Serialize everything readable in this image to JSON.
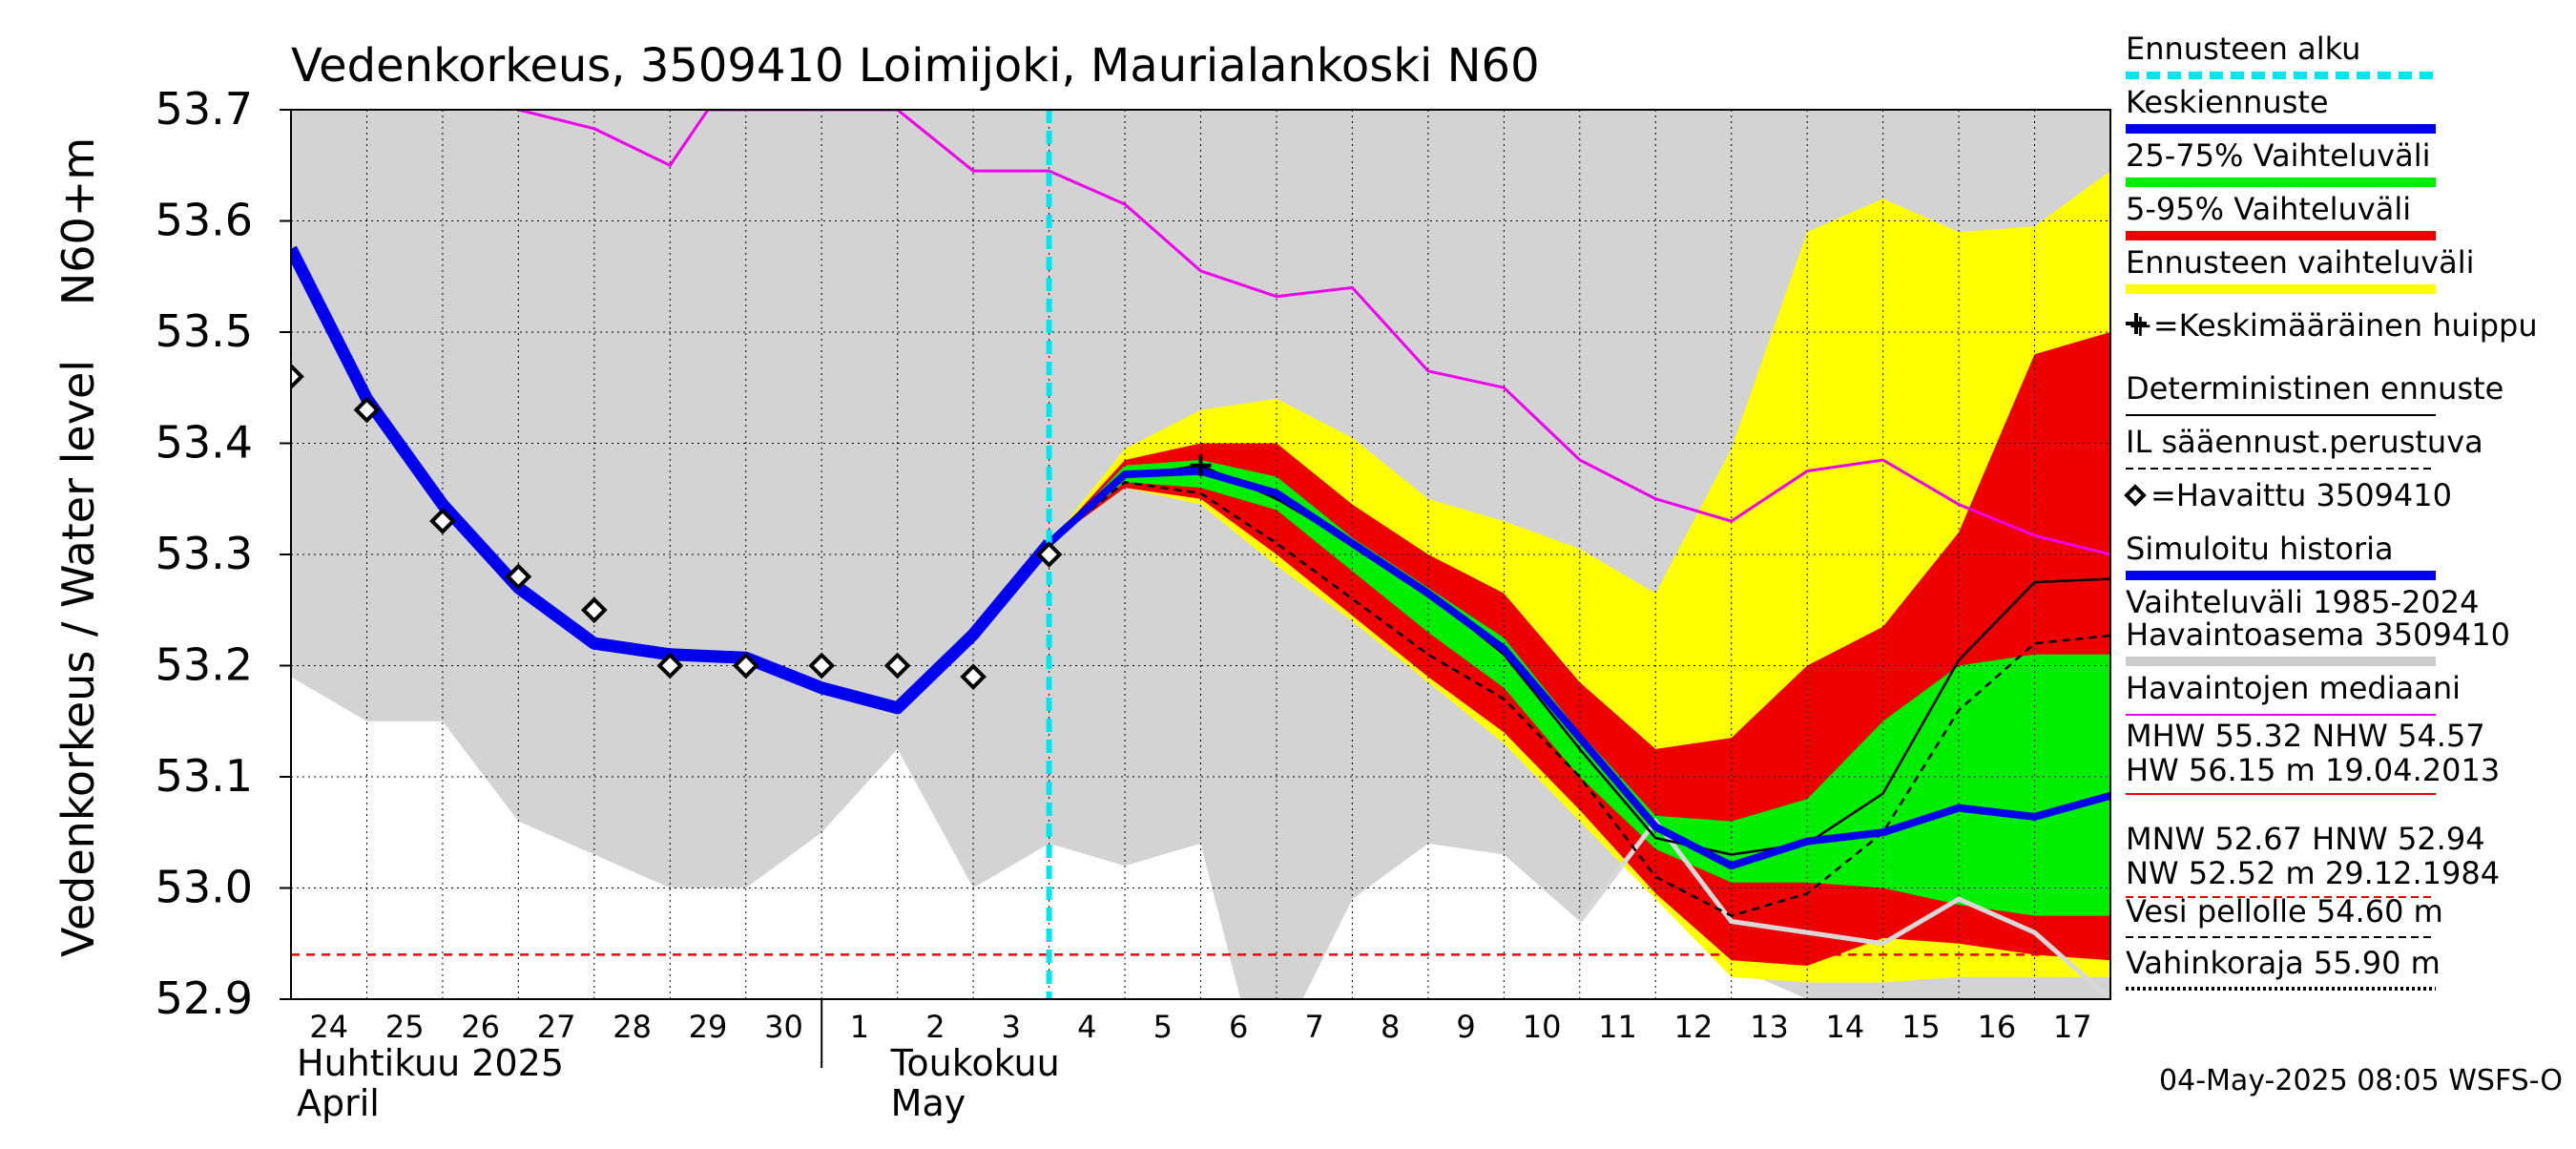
{
  "chart_data": {
    "type": "line",
    "title": "Vedenkorkeus, 3509410 Loimijoki, Maurialankoski N60",
    "ylabel_fi": "Vedenkorkeus / Water level",
    "ylabel_unit": "N60+m",
    "ylim": [
      52.9,
      53.7
    ],
    "yticks": [
      "53.7",
      "53.6",
      "53.5",
      "53.4",
      "53.3",
      "53.2",
      "53.1",
      "53.0",
      "52.9"
    ],
    "x_days": [
      "24",
      "25",
      "26",
      "27",
      "28",
      "29",
      "30",
      "1",
      "2",
      "3",
      "4",
      "5",
      "6",
      "7",
      "8",
      "9",
      "10",
      "11",
      "12",
      "13",
      "14",
      "15",
      "16",
      "17"
    ],
    "month_labels": [
      {
        "fi": "Huhtikuu  2025",
        "en": "April"
      },
      {
        "fi": "Toukokuu",
        "en": "May"
      }
    ],
    "forecast_start_day": "4",
    "footer": "04-May-2025 08:05 WSFS-O",
    "grid": true,
    "legend_position": "right",
    "legend": [
      {
        "label": "Ennusteen alku",
        "color": "#00e5ee",
        "style": "dashed"
      },
      {
        "label": "Keskiennuste",
        "color": "#0000ee",
        "style": "thick"
      },
      {
        "label": "25-75% Vaihteluväli",
        "color": "#00ee00",
        "style": "thick"
      },
      {
        "label": "5-95% Vaihteluväli",
        "color": "#ee0000",
        "style": "thick"
      },
      {
        "label": "Ennusteen vaihteluväli",
        "color": "#ffff00",
        "style": "thick"
      },
      {
        "label": "+=Keskimääräinen huippu",
        "color": "#000000",
        "style": "none"
      },
      {
        "label": "Deterministinen ennuste",
        "color": "#000000",
        "style": "solid"
      },
      {
        "label": "IL sääennust.perustuva",
        "color": "#000000",
        "style": "dashed"
      },
      {
        "label": "=Havaittu 3509410",
        "color": "#000000",
        "style": "none"
      },
      {
        "label": "Simuloitu historia",
        "color": "#0000ee",
        "style": "thick"
      },
      {
        "label": "Vaihteluväli 1985-2024",
        "color": "#cccccc",
        "style": "none"
      },
      {
        "label": " Havaintoasema 3509410",
        "color": "#cccccc",
        "style": "thick"
      },
      {
        "label": "Havaintojen mediaani",
        "color": "#ee00ee",
        "style": "solid"
      }
    ],
    "stats": [
      {
        "line1": "MHW  55.32 NHW  54.57",
        "line2": "HW  56.15 m 19.04.2013",
        "color": "#ee0000",
        "style": "solid"
      },
      {
        "line1": "MNW  52.67 HNW  52.94",
        "line2": "NW  52.52 m 29.12.1984",
        "color": "#ee0000",
        "style": "dashed"
      }
    ],
    "thresholds": [
      {
        "label": "Vesi pellolle 54.60 m",
        "style": "dashed"
      },
      {
        "label": "Vahinkoraja 55.90 m",
        "style": "dotted"
      }
    ],
    "hnw_line": 52.94,
    "observed_points": [
      [
        0,
        53.46
      ],
      [
        1,
        53.43
      ],
      [
        2,
        53.33
      ],
      [
        3,
        53.28
      ],
      [
        4,
        53.25
      ],
      [
        5,
        53.2
      ],
      [
        6,
        53.2
      ],
      [
        7,
        53.2
      ],
      [
        8,
        53.2
      ],
      [
        9,
        53.19
      ],
      [
        10,
        53.3
      ]
    ],
    "simulated_history": [
      [
        0,
        53.575
      ],
      [
        1,
        53.44
      ],
      [
        2,
        53.345
      ],
      [
        3,
        53.27
      ],
      [
        4,
        53.22
      ],
      [
        5,
        53.21
      ],
      [
        6,
        53.207
      ],
      [
        7,
        53.18
      ],
      [
        8,
        53.162
      ],
      [
        9,
        53.228
      ],
      [
        10,
        53.31
      ]
    ],
    "median_observed": [
      [
        3,
        53.7
      ],
      [
        4,
        53.683
      ],
      [
        5,
        53.65
      ],
      [
        5.5,
        53.7
      ],
      [
        8,
        53.7
      ],
      [
        9,
        53.645
      ],
      [
        10,
        53.645
      ],
      [
        11,
        53.615
      ],
      [
        12,
        53.555
      ],
      [
        13,
        53.532
      ],
      [
        14,
        53.54
      ],
      [
        15,
        53.465
      ],
      [
        16,
        53.45
      ],
      [
        17,
        53.385
      ],
      [
        18,
        53.35
      ],
      [
        19,
        53.33
      ],
      [
        20,
        53.375
      ],
      [
        21,
        53.385
      ],
      [
        22,
        53.345
      ],
      [
        23,
        53.317
      ],
      [
        24,
        53.3
      ]
    ],
    "historical_range_upper": [
      [
        0,
        53.7
      ],
      [
        24,
        53.7
      ]
    ],
    "historical_range_lower": [
      [
        0,
        53.19
      ],
      [
        1,
        53.15
      ],
      [
        2,
        53.15
      ],
      [
        3,
        53.06
      ],
      [
        4,
        53.03
      ],
      [
        5,
        53.0
      ],
      [
        6,
        53.0
      ],
      [
        7,
        53.05
      ],
      [
        8,
        53.125
      ],
      [
        9,
        53.0
      ],
      [
        10,
        53.04
      ],
      [
        11,
        53.02
      ],
      [
        12,
        53.04
      ],
      [
        12.6,
        52.88
      ],
      [
        13.2,
        52.88
      ],
      [
        14,
        52.99
      ],
      [
        15,
        53.04
      ],
      [
        16,
        53.03
      ],
      [
        17,
        52.97
      ],
      [
        18,
        53.06
      ],
      [
        19,
        52.93
      ],
      [
        20,
        52.9
      ],
      [
        21,
        52.9
      ],
      [
        22,
        52.9
      ],
      [
        23,
        52.9
      ],
      [
        24,
        52.9
      ]
    ],
    "station_history": [
      [
        17,
        52.97
      ],
      [
        18,
        53.06
      ],
      [
        19,
        52.97
      ],
      [
        20,
        52.96
      ],
      [
        21,
        52.95
      ],
      [
        22,
        52.99
      ],
      [
        23,
        52.96
      ],
      [
        24,
        52.9
      ]
    ],
    "forecast_days": [
      10,
      11,
      12,
      13,
      14,
      15,
      16,
      17,
      18,
      19,
      20,
      21,
      22,
      23,
      24
    ],
    "range_max": [
      53.31,
      53.395,
      53.43,
      53.44,
      53.405,
      53.35,
      53.33,
      53.305,
      53.265,
      53.395,
      53.59,
      53.62,
      53.59,
      53.595,
      53.645
    ],
    "range_min": [
      53.31,
      53.36,
      53.345,
      53.29,
      53.24,
      53.185,
      53.13,
      53.06,
      52.99,
      52.92,
      52.915,
      52.915,
      52.92,
      52.92,
      52.92
    ],
    "p95": [
      53.31,
      53.385,
      53.4,
      53.4,
      53.345,
      53.3,
      53.265,
      53.185,
      53.125,
      53.135,
      53.2,
      53.235,
      53.32,
      53.48,
      53.5
    ],
    "p05": [
      53.31,
      53.36,
      53.35,
      53.3,
      53.245,
      53.19,
      53.14,
      53.07,
      52.995,
      52.935,
      52.93,
      52.955,
      52.95,
      52.94,
      52.935
    ],
    "p75": [
      53.31,
      53.38,
      53.385,
      53.37,
      53.315,
      53.27,
      53.225,
      53.14,
      53.065,
      53.06,
      53.08,
      53.15,
      53.2,
      53.21,
      53.21
    ],
    "p25": [
      53.31,
      53.365,
      53.36,
      53.34,
      53.285,
      53.23,
      53.18,
      53.1,
      53.035,
      53.005,
      53.005,
      53.0,
      52.985,
      52.975,
      52.975
    ],
    "mean_forecast": [
      53.31,
      53.372,
      53.375,
      53.355,
      53.31,
      53.265,
      53.215,
      53.135,
      53.055,
      53.02,
      53.042,
      53.05,
      53.072,
      53.064,
      53.083
    ],
    "deterministic": [
      53.31,
      53.37,
      53.38,
      53.35,
      53.31,
      53.265,
      53.21,
      53.125,
      53.045,
      53.03,
      53.04,
      53.085,
      53.205,
      53.275,
      53.278
    ],
    "il_forecast": [
      53.31,
      53.365,
      53.355,
      53.31,
      53.26,
      53.21,
      53.17,
      53.1,
      53.01,
      52.975,
      52.995,
      53.05,
      53.16,
      53.22,
      53.227
    ],
    "mean_peak": [
      [
        12,
        53.38
      ]
    ]
  }
}
